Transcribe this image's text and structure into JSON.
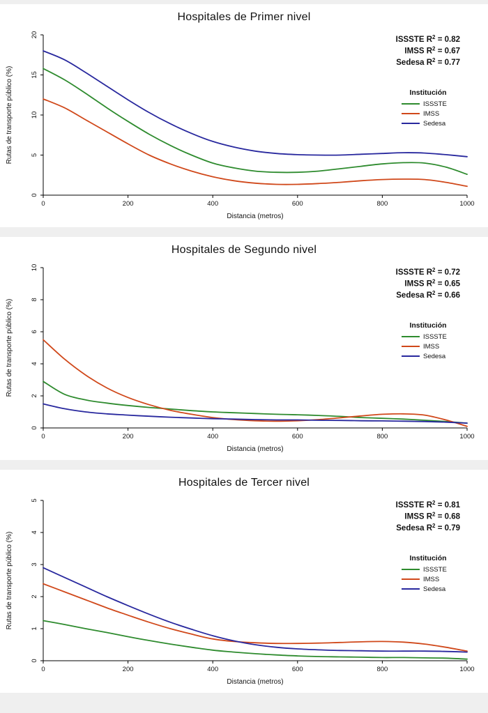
{
  "page": {
    "background": "#efefef",
    "panel_background": "#ffffff"
  },
  "chart_data": [
    {
      "type": "line",
      "title": "Hospitales de Primer nivel",
      "xlabel": "Distancia (metros)",
      "ylabel": "Rutas de transporte público (%)",
      "xlim": [
        0,
        1000
      ],
      "ylim": [
        0,
        20
      ],
      "xticks": [
        0,
        200,
        400,
        600,
        800,
        1000
      ],
      "yticks": [
        0,
        5,
        10,
        15,
        20
      ],
      "grid": false,
      "legend_title": "Institución",
      "legend_position": "right-middle",
      "r2_annotations": [
        {
          "name": "ISSSTE",
          "r2": "0.82"
        },
        {
          "name": "IMSS",
          "r2": "0.67"
        },
        {
          "name": "Sedesa",
          "r2": "0.77"
        }
      ],
      "x": [
        0,
        50,
        100,
        150,
        200,
        250,
        300,
        350,
        400,
        450,
        500,
        550,
        600,
        650,
        700,
        750,
        800,
        850,
        900,
        950,
        1000
      ],
      "series": [
        {
          "name": "ISSSTE",
          "color": "#2e8b2e",
          "values": [
            15.8,
            14.4,
            12.7,
            10.9,
            9.2,
            7.6,
            6.2,
            5.0,
            4.0,
            3.4,
            3.0,
            2.85,
            2.85,
            3.0,
            3.3,
            3.6,
            3.9,
            4.05,
            4.0,
            3.5,
            2.6
          ]
        },
        {
          "name": "IMSS",
          "color": "#d0481a",
          "values": [
            12.0,
            10.9,
            9.4,
            7.9,
            6.4,
            5.0,
            3.9,
            3.0,
            2.3,
            1.8,
            1.5,
            1.35,
            1.35,
            1.45,
            1.6,
            1.8,
            1.95,
            2.0,
            1.95,
            1.6,
            1.1
          ]
        },
        {
          "name": "Sedesa",
          "color": "#28289e",
          "values": [
            18.0,
            16.9,
            15.3,
            13.6,
            11.9,
            10.3,
            8.9,
            7.7,
            6.7,
            6.0,
            5.5,
            5.2,
            5.05,
            5.0,
            5.0,
            5.1,
            5.2,
            5.3,
            5.25,
            5.05,
            4.8
          ]
        }
      ]
    },
    {
      "type": "line",
      "title": "Hospitales de Segundo nivel",
      "xlabel": "Distancia (metros)",
      "ylabel": "Rutas de transporte público (%)",
      "xlim": [
        0,
        1000
      ],
      "ylim": [
        0,
        10
      ],
      "xticks": [
        0,
        200,
        400,
        600,
        800,
        1000
      ],
      "yticks": [
        0,
        2,
        4,
        6,
        8,
        10
      ],
      "grid": false,
      "legend_title": "Institución",
      "legend_position": "right-middle",
      "r2_annotations": [
        {
          "name": "ISSSTE",
          "r2": "0.72"
        },
        {
          "name": "IMSS",
          "r2": "0.65"
        },
        {
          "name": "Sedesa",
          "r2": "0.66"
        }
      ],
      "x": [
        0,
        50,
        100,
        150,
        200,
        250,
        300,
        350,
        400,
        450,
        500,
        550,
        600,
        650,
        700,
        750,
        800,
        850,
        900,
        950,
        1000
      ],
      "series": [
        {
          "name": "ISSSTE",
          "color": "#2e8b2e",
          "values": [
            2.9,
            2.1,
            1.75,
            1.55,
            1.4,
            1.28,
            1.18,
            1.08,
            1.0,
            0.95,
            0.9,
            0.85,
            0.82,
            0.78,
            0.72,
            0.65,
            0.6,
            0.55,
            0.48,
            0.4,
            0.3
          ]
        },
        {
          "name": "IMSS",
          "color": "#d0481a",
          "values": [
            5.5,
            4.3,
            3.3,
            2.5,
            1.9,
            1.45,
            1.1,
            0.85,
            0.65,
            0.52,
            0.45,
            0.42,
            0.45,
            0.52,
            0.63,
            0.75,
            0.85,
            0.88,
            0.8,
            0.5,
            0.1
          ]
        },
        {
          "name": "Sedesa",
          "color": "#28289e",
          "values": [
            1.5,
            1.2,
            1.0,
            0.88,
            0.8,
            0.73,
            0.67,
            0.62,
            0.58,
            0.55,
            0.52,
            0.5,
            0.5,
            0.48,
            0.47,
            0.45,
            0.44,
            0.42,
            0.4,
            0.36,
            0.3
          ]
        }
      ]
    },
    {
      "type": "line",
      "title": "Hospitales de Tercer nivel",
      "xlabel": "Distancia (metros)",
      "ylabel": "Rutas de transporte público (%)",
      "xlim": [
        0,
        1000
      ],
      "ylim": [
        0,
        5
      ],
      "xticks": [
        0,
        200,
        400,
        600,
        800,
        1000
      ],
      "yticks": [
        0,
        1,
        2,
        3,
        4,
        5
      ],
      "grid": false,
      "legend_title": "Institución",
      "legend_position": "right-middle",
      "r2_annotations": [
        {
          "name": "ISSSTE",
          "r2": "0.81"
        },
        {
          "name": "IMSS",
          "r2": "0.68"
        },
        {
          "name": "Sedesa",
          "r2": "0.79"
        }
      ],
      "x": [
        0,
        50,
        100,
        150,
        200,
        250,
        300,
        350,
        400,
        450,
        500,
        550,
        600,
        650,
        700,
        750,
        800,
        850,
        900,
        950,
        1000
      ],
      "series": [
        {
          "name": "ISSSTE",
          "color": "#2e8b2e",
          "values": [
            1.25,
            1.13,
            1.0,
            0.88,
            0.75,
            0.63,
            0.52,
            0.42,
            0.33,
            0.27,
            0.22,
            0.18,
            0.15,
            0.13,
            0.12,
            0.11,
            0.1,
            0.1,
            0.09,
            0.08,
            0.05
          ]
        },
        {
          "name": "IMSS",
          "color": "#d0481a",
          "values": [
            2.4,
            2.15,
            1.9,
            1.65,
            1.42,
            1.2,
            1.0,
            0.83,
            0.68,
            0.6,
            0.56,
            0.54,
            0.54,
            0.55,
            0.57,
            0.59,
            0.6,
            0.58,
            0.52,
            0.42,
            0.3
          ]
        },
        {
          "name": "Sedesa",
          "color": "#28289e",
          "values": [
            2.9,
            2.6,
            2.3,
            2.0,
            1.72,
            1.45,
            1.2,
            0.98,
            0.78,
            0.62,
            0.5,
            0.42,
            0.37,
            0.34,
            0.32,
            0.31,
            0.3,
            0.3,
            0.3,
            0.29,
            0.27
          ]
        }
      ]
    }
  ]
}
